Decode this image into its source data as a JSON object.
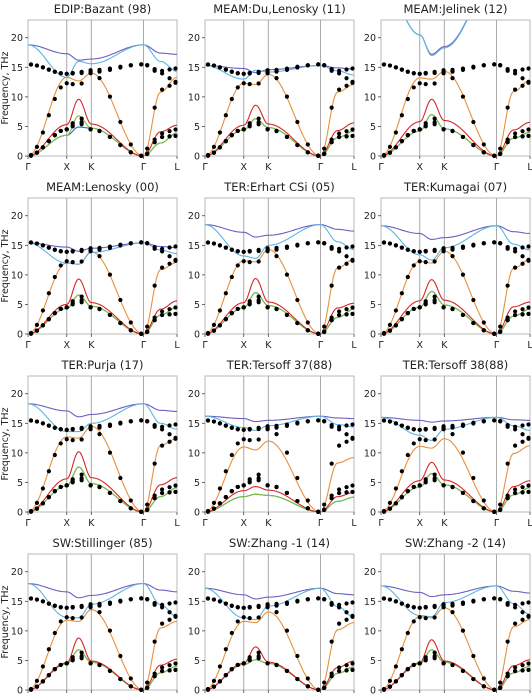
{
  "figure": {
    "ylabel": "Frequency, THz",
    "x_ticks": [
      "Γ",
      "X",
      "K",
      "Γ",
      "L"
    ],
    "y_ticks": [
      0,
      5,
      10,
      15,
      20
    ],
    "ylim": [
      0,
      23
    ],
    "colors": {
      "frame": "#b8b8b8",
      "path_divider": "#a8a8a8",
      "experiment_points": "#000000",
      "branch_TA1": "#1f77b4",
      "branch_TA2": "#7fbf3f",
      "branch_LA": "#d62728",
      "branch_LO": "#e8903a",
      "branch_TO1": "#6b5fbf",
      "branch_TO2": "#5fb4e0"
    }
  },
  "chart_data": [
    {
      "type": "line",
      "title": "EDIP:Bazant (98)",
      "series": [
        {
          "values": [
            0,
            3.5,
            4.9,
            4.7,
            0,
            2.2,
            3.9
          ]
        },
        {
          "values": [
            0,
            3.5,
            6.8,
            4.7,
            0,
            2.2,
            3.9
          ]
        },
        {
          "values": [
            0,
            5.3,
            9.6,
            5.4,
            0,
            4.1,
            5.2
          ]
        },
        {
          "values": [
            0,
            13.3,
            12.7,
            14.0,
            0,
            10.8,
            13.3
          ]
        },
        {
          "values": [
            18.8,
            17.3,
            16.2,
            16.4,
            18.8,
            17.4,
            17.2
          ]
        },
        {
          "values": [
            18.8,
            13.3,
            16.0,
            15.6,
            18.8,
            16.0,
            14.3
          ]
        }
      ]
    },
    {
      "type": "line",
      "title": "MEAM:Du,Lenosky (11)",
      "series": [
        {
          "values": [
            0,
            4.4,
            6.3,
            4.8,
            0,
            3.1,
            4.2
          ]
        },
        {
          "values": [
            0,
            4.4,
            6.3,
            4.8,
            0,
            3.1,
            4.2
          ]
        },
        {
          "values": [
            0,
            5.2,
            8.6,
            5.4,
            0,
            4.3,
            5.6
          ]
        },
        {
          "values": [
            0,
            12.3,
            12.1,
            13.8,
            0,
            10.8,
            12.1
          ]
        },
        {
          "values": [
            15.3,
            14.8,
            14.1,
            14.6,
            15.3,
            14.9,
            14.7
          ]
        },
        {
          "values": [
            15.3,
            13.0,
            14.5,
            14.2,
            15.3,
            14.4,
            13.7
          ]
        }
      ]
    },
    {
      "type": "line",
      "title": "MEAM:Jelinek (12)",
      "series": [
        {
          "values": [
            0,
            4.2,
            7.0,
            4.6,
            0,
            3.0,
            4.0
          ]
        },
        {
          "values": [
            0,
            4.2,
            7.0,
            4.6,
            0,
            3.0,
            4.0
          ]
        },
        {
          "values": [
            0,
            5.8,
            9.6,
            6.0,
            0,
            4.4,
            5.7
          ]
        },
        {
          "values": [
            0,
            13.2,
            13.0,
            14.3,
            0,
            10.9,
            12.8
          ]
        },
        {
          "values": [
            30,
            20.5,
            17.2,
            18.5,
            30,
            25,
            27
          ]
        },
        {
          "values": [
            30,
            20.5,
            17.0,
            18.3,
            30,
            25,
            26
          ]
        }
      ]
    },
    {
      "type": "line",
      "title": "MEAM:Lenosky (00)",
      "series": [
        {
          "values": [
            0,
            4.3,
            6.6,
            4.7,
            0,
            3.2,
            4.5
          ]
        },
        {
          "values": [
            0,
            4.3,
            6.6,
            4.7,
            0,
            3.2,
            4.5
          ]
        },
        {
          "values": [
            0,
            5.0,
            9.3,
            5.3,
            0,
            4.2,
            5.6
          ]
        },
        {
          "values": [
            0,
            12.0,
            11.8,
            13.9,
            0,
            10.9,
            12.1
          ]
        },
        {
          "values": [
            15.4,
            14.7,
            14.0,
            14.5,
            15.4,
            14.8,
            14.6
          ]
        },
        {
          "values": [
            15.4,
            12.0,
            11.8,
            13.8,
            15.4,
            14.2,
            13.6
          ]
        }
      ]
    },
    {
      "type": "line",
      "title": "TER:Erhart CSi (05)",
      "series": [
        {
          "values": [
            0,
            4.4,
            7.0,
            4.8,
            0,
            2.8,
            4.2
          ]
        },
        {
          "values": [
            0,
            4.4,
            7.0,
            4.8,
            0,
            2.8,
            4.2
          ]
        },
        {
          "values": [
            0,
            5.3,
            9.4,
            5.4,
            0,
            4.4,
            5.2
          ]
        },
        {
          "values": [
            0,
            12.4,
            12.2,
            14.3,
            0,
            11.2,
            12.6
          ]
        },
        {
          "values": [
            18.5,
            17.2,
            16.4,
            16.7,
            18.5,
            17.7,
            17.4
          ]
        },
        {
          "values": [
            18.5,
            13.2,
            12.8,
            15.0,
            18.5,
            15.6,
            14.3
          ]
        }
      ]
    },
    {
      "type": "line",
      "title": "TER:Kumagai (07)",
      "series": [
        {
          "values": [
            0,
            4.5,
            7.2,
            4.9,
            0,
            3.0,
            4.2
          ]
        },
        {
          "values": [
            0,
            4.5,
            7.2,
            4.9,
            0,
            3.0,
            4.2
          ]
        },
        {
          "values": [
            0,
            5.6,
            9.2,
            5.7,
            0,
            4.6,
            5.4
          ]
        },
        {
          "values": [
            0,
            12.3,
            12.0,
            14.0,
            0,
            11.1,
            12.6
          ]
        },
        {
          "values": [
            18.3,
            17.0,
            16.0,
            16.3,
            18.3,
            17.3,
            17.0
          ]
        },
        {
          "values": [
            18.3,
            13.4,
            12.5,
            14.6,
            18.3,
            15.2,
            14.2
          ]
        }
      ]
    },
    {
      "type": "line",
      "title": "TER:Purja (17)",
      "series": [
        {
          "values": [
            0,
            4.4,
            7.6,
            4.8,
            0,
            2.6,
            4.1
          ]
        },
        {
          "values": [
            0,
            4.4,
            7.6,
            4.8,
            0,
            2.6,
            4.1
          ]
        },
        {
          "values": [
            0,
            5.6,
            10.2,
            5.8,
            0,
            4.6,
            5.8
          ]
        },
        {
          "values": [
            0,
            12.7,
            12.5,
            14.5,
            0,
            11.3,
            12.4
          ]
        },
        {
          "values": [
            18.3,
            17.1,
            16.1,
            16.5,
            18.3,
            17.2,
            17.0
          ]
        },
        {
          "values": [
            18.3,
            13.6,
            13.6,
            15.0,
            18.3,
            15.0,
            14.0
          ]
        }
      ]
    },
    {
      "type": "line",
      "title": "TER:Tersoff 37(88)",
      "series": [
        {
          "values": [
            0,
            2.6,
            3.0,
            2.8,
            0,
            1.8,
            2.5
          ]
        },
        {
          "values": [
            0,
            2.6,
            3.0,
            2.8,
            0,
            1.8,
            2.5
          ]
        },
        {
          "values": [
            0,
            3.6,
            4.3,
            3.7,
            0,
            2.6,
            3.3
          ]
        },
        {
          "values": [
            0,
            11.0,
            10.5,
            12.0,
            0,
            8.3,
            9.2
          ]
        },
        {
          "values": [
            16.2,
            15.8,
            15.3,
            15.5,
            16.2,
            15.9,
            15.8
          ]
        },
        {
          "values": [
            16.2,
            14.3,
            13.8,
            14.6,
            16.2,
            14.8,
            14.4
          ]
        }
      ]
    },
    {
      "type": "line",
      "title": "TER:Tersoff 38(88)",
      "series": [
        {
          "values": [
            0,
            4.2,
            6.5,
            4.6,
            0,
            2.9,
            4.1
          ]
        },
        {
          "values": [
            0,
            4.2,
            6.5,
            4.6,
            0,
            2.9,
            4.1
          ]
        },
        {
          "values": [
            0,
            5.3,
            8.4,
            5.4,
            0,
            4.3,
            5.3
          ]
        },
        {
          "values": [
            0,
            11.1,
            10.8,
            12.4,
            0,
            9.9,
            11.2
          ]
        },
        {
          "values": [
            16.0,
            15.5,
            15.2,
            15.4,
            16.0,
            15.6,
            15.5
          ]
        },
        {
          "values": [
            16.0,
            13.0,
            12.1,
            14.0,
            16.0,
            14.6,
            13.8
          ]
        }
      ]
    },
    {
      "type": "line",
      "title": "SW:Stillinger (85)",
      "series": [
        {
          "values": [
            0,
            4.4,
            6.8,
            4.7,
            0,
            2.9,
            4.0
          ]
        },
        {
          "values": [
            0,
            4.4,
            6.8,
            4.7,
            0,
            2.9,
            4.0
          ]
        },
        {
          "values": [
            0,
            4.6,
            8.8,
            4.9,
            0,
            4.2,
            5.2
          ]
        },
        {
          "values": [
            0,
            11.8,
            11.6,
            13.6,
            0,
            10.5,
            11.6
          ]
        },
        {
          "values": [
            18.0,
            16.6,
            15.6,
            16.0,
            18.0,
            16.9,
            16.6
          ]
        },
        {
          "values": [
            18.0,
            12.3,
            12.2,
            14.5,
            18.0,
            14.4,
            12.4
          ]
        }
      ]
    },
    {
      "type": "line",
      "title": "SW:Zhang -1 (14)",
      "series": [
        {
          "values": [
            0,
            4.3,
            5.1,
            4.5,
            0,
            2.8,
            3.9
          ]
        },
        {
          "values": [
            0,
            4.3,
            5.1,
            4.5,
            0,
            2.8,
            3.9
          ]
        },
        {
          "values": [
            0,
            4.5,
            7.3,
            4.7,
            0,
            3.8,
            4.9
          ]
        },
        {
          "values": [
            0,
            11.6,
            11.4,
            13.2,
            0,
            10.2,
            11.4
          ]
        },
        {
          "values": [
            17.2,
            16.1,
            15.4,
            15.7,
            17.2,
            16.3,
            16.1
          ]
        },
        {
          "values": [
            17.2,
            12.2,
            11.9,
            14.2,
            17.2,
            14.1,
            12.3
          ]
        }
      ]
    },
    {
      "type": "line",
      "title": "SW:Zhang -2 (14)",
      "series": [
        {
          "values": [
            0,
            4.4,
            6.8,
            4.7,
            0,
            2.9,
            4.0
          ]
        },
        {
          "values": [
            0,
            4.4,
            6.8,
            4.7,
            0,
            2.9,
            4.0
          ]
        },
        {
          "values": [
            0,
            4.6,
            8.5,
            4.9,
            0,
            4.1,
            5.1
          ]
        },
        {
          "values": [
            0,
            12.4,
            12.2,
            13.9,
            0,
            10.7,
            11.9
          ]
        },
        {
          "values": [
            17.6,
            16.5,
            15.8,
            16.1,
            17.6,
            16.7,
            16.4
          ]
        },
        {
          "values": [
            17.6,
            12.6,
            12.4,
            14.8,
            17.6,
            14.6,
            12.8
          ]
        }
      ]
    }
  ]
}
